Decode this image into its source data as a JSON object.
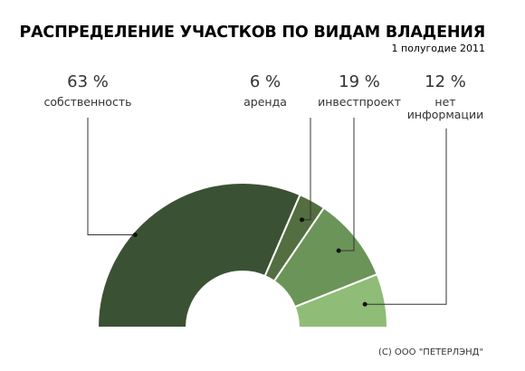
{
  "chart_data": {
    "type": "pie",
    "style": "semicircle-donut",
    "title": "РАСПРЕДЕЛЕНИЕ УЧАСТКОВ ПО ВИДАМ ВЛАДЕНИЯ",
    "subtitle": "1 полугодие 2011",
    "unit": "%",
    "slices": [
      {
        "label": "собственность",
        "value": 63,
        "value_label": "63 %",
        "color": "#3a5233"
      },
      {
        "label": "аренда",
        "value": 6,
        "value_label": "6 %",
        "color": "#536e40"
      },
      {
        "label": "инвестпроект",
        "value": 19,
        "value_label": "19 %",
        "color": "#6b9459"
      },
      {
        "label": "нет\nинформации",
        "value": 12,
        "value_label": "12 %",
        "color": "#8fbc76"
      }
    ]
  },
  "footer": {
    "copyright": "(C) ООО \"ПЕТЕРЛЭНД\""
  }
}
